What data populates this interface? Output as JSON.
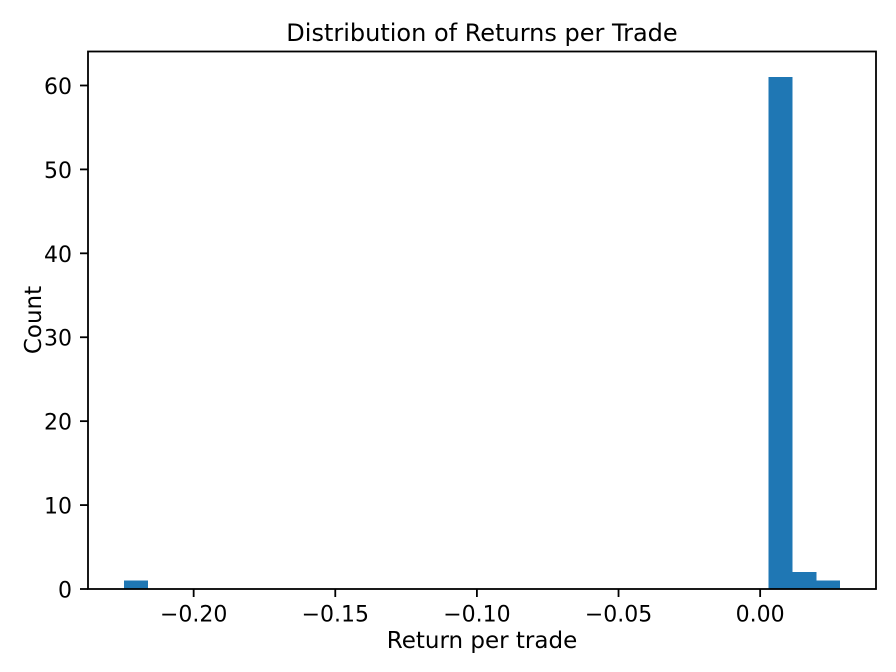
{
  "chart_data": {
    "type": "histogram",
    "title": "Distribution of Returns per Trade",
    "xlabel": "Return per trade",
    "ylabel": "Count",
    "bar_color": "#1f77b4",
    "axis_color": "#000000",
    "background_color": "#ffffff",
    "grid": false,
    "legend": null,
    "bins": {
      "start": -0.2246,
      "width": 0.008429,
      "counts": [
        1,
        0,
        0,
        0,
        0,
        0,
        0,
        0,
        0,
        0,
        0,
        0,
        0,
        0,
        0,
        0,
        0,
        0,
        0,
        0,
        0,
        0,
        0,
        0,
        0,
        0,
        0,
        61,
        2,
        1
      ]
    },
    "xlim": [
      -0.2373,
      0.0409
    ],
    "ylim": [
      0,
      64.05
    ],
    "x_ticks": [
      {
        "value": -0.2,
        "label": "−0.20"
      },
      {
        "value": -0.15,
        "label": "−0.15"
      },
      {
        "value": -0.1,
        "label": "−0.10"
      },
      {
        "value": -0.05,
        "label": "−0.05"
      },
      {
        "value": 0.0,
        "label": "0.00"
      }
    ],
    "y_ticks": [
      {
        "value": 0,
        "label": "0"
      },
      {
        "value": 10,
        "label": "10"
      },
      {
        "value": 20,
        "label": "20"
      },
      {
        "value": 30,
        "label": "30"
      },
      {
        "value": 40,
        "label": "40"
      },
      {
        "value": 50,
        "label": "50"
      },
      {
        "value": 60,
        "label": "60"
      }
    ]
  }
}
